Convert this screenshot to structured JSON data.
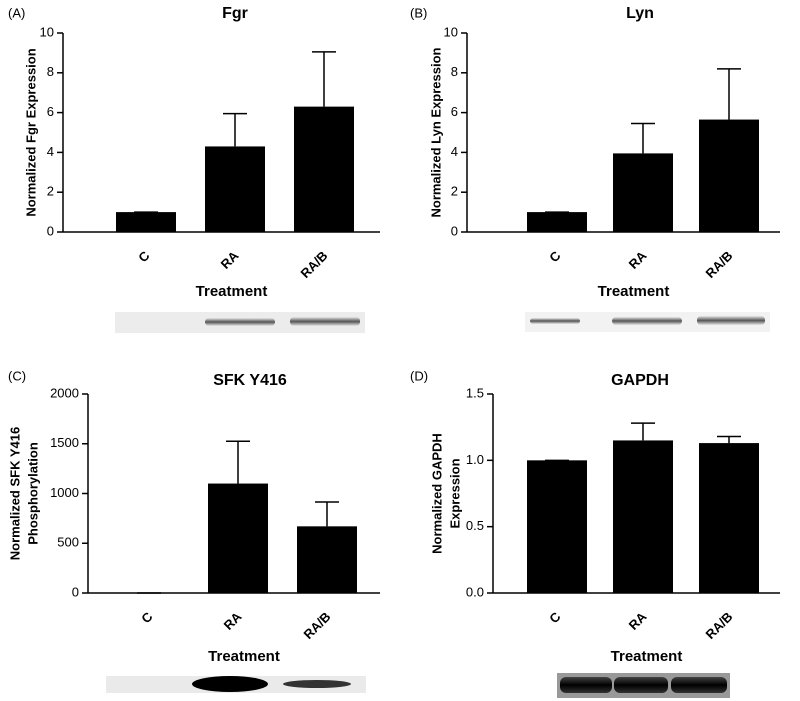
{
  "chart_data": [
    {
      "type": "bar",
      "panel": "(A)",
      "title": "Fgr",
      "ylabel": "Normalized Fgr Expression",
      "xlabel": "Treatment",
      "categories": [
        "C",
        "RA",
        "RA/B"
      ],
      "values": [
        1,
        4.3,
        6.3
      ],
      "errors": [
        0,
        1.65,
        2.75
      ],
      "color": "#000000",
      "ylim": [
        0,
        10
      ],
      "yticks": [
        0,
        2,
        4,
        6,
        8,
        10
      ]
    },
    {
      "type": "bar",
      "panel": "(B)",
      "title": "Lyn",
      "ylabel": "Normalized Lyn Expression",
      "xlabel": "Treatment",
      "categories": [
        "C",
        "RA",
        "RA/B"
      ],
      "values": [
        1,
        3.95,
        5.65
      ],
      "errors": [
        0,
        1.5,
        2.55
      ],
      "color": "#000000",
      "ylim": [
        0,
        10
      ],
      "yticks": [
        0,
        2,
        4,
        6,
        8,
        10
      ]
    },
    {
      "type": "bar",
      "panel": "(C)",
      "title": "SFK Y416",
      "ylabel": [
        "Normalized SFK Y416",
        "Phosphorylation"
      ],
      "xlabel": "Treatment",
      "categories": [
        "C",
        "RA",
        "RA/B"
      ],
      "values": [
        0,
        1100,
        670
      ],
      "errors": [
        0,
        425,
        245
      ],
      "color": "#000000",
      "ylim": [
        0,
        2000
      ],
      "yticks": [
        0,
        500,
        1000,
        1500,
        2000
      ]
    },
    {
      "type": "bar",
      "panel": "(D)",
      "title": "GAPDH",
      "ylabel": [
        "Normalized GAPDH",
        "Expression"
      ],
      "xlabel": "Treatment",
      "categories": [
        "C",
        "RA",
        "RA/B"
      ],
      "values": [
        1.0,
        1.15,
        1.13
      ],
      "errors": [
        0,
        0.13,
        0.05
      ],
      "color": "#000000",
      "ylim": [
        0,
        1.5
      ],
      "yticks": [
        {
          "value": 0,
          "label": "0.0"
        },
        0.5,
        {
          "value": 1,
          "label": "1.0"
        },
        1.5
      ]
    }
  ]
}
